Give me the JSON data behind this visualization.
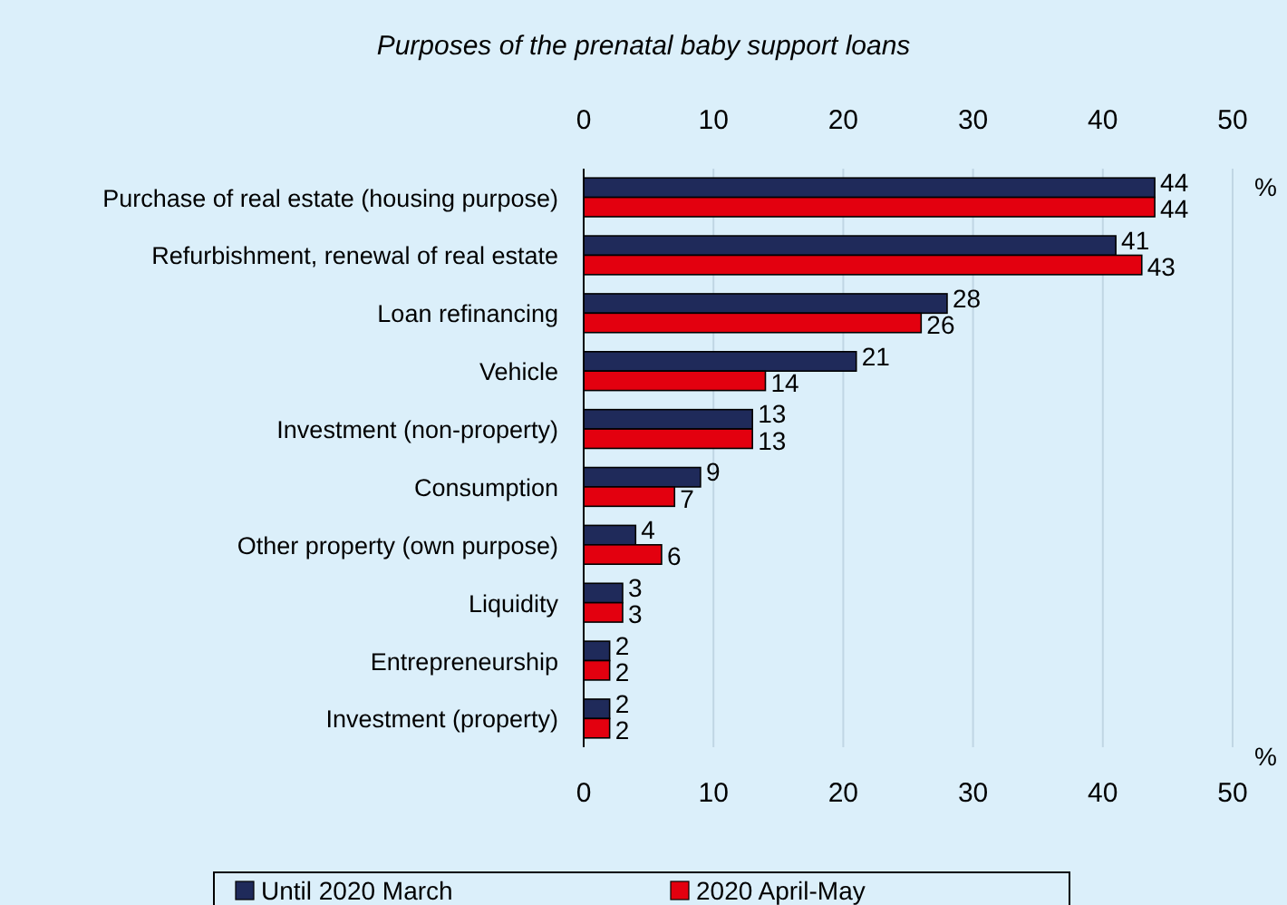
{
  "chart_data": {
    "type": "bar",
    "orientation": "horizontal",
    "title": "Purposes of the prenatal baby support loans",
    "categories": [
      "Purchase of real estate (housing purpose)",
      "Refurbishment, renewal of real estate",
      "Loan refinancing",
      "Vehicle",
      "Investment (non-property)",
      "Consumption",
      "Other property (own purpose)",
      "Liquidity",
      "Entrepreneurship",
      "Investment (property)"
    ],
    "series": [
      {
        "name": "Until 2020 March",
        "color": "#1f2a5a",
        "values": [
          44,
          41,
          28,
          21,
          13,
          9,
          4,
          3,
          2,
          2
        ]
      },
      {
        "name": "2020 April-May",
        "color": "#e3000f",
        "values": [
          44,
          43,
          26,
          14,
          13,
          7,
          6,
          3,
          2,
          2
        ]
      }
    ],
    "xlim": [
      0,
      50
    ],
    "xticks": [
      0,
      10,
      20,
      30,
      40,
      50
    ],
    "x2lim": [
      0,
      50
    ],
    "x2ticks": [
      0,
      10,
      20,
      30,
      40,
      50
    ],
    "grid": "x",
    "legend": "bottom",
    "data_labels": true,
    "annotations": [
      "%",
      "%"
    ]
  }
}
